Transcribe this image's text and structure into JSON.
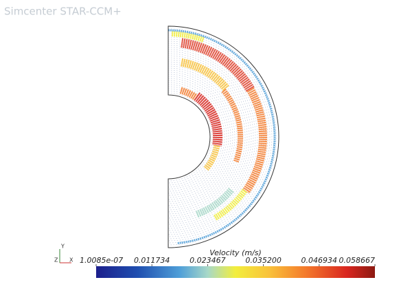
{
  "header": {
    "title": "Simcenter STAR-CCM+"
  },
  "colorbar": {
    "title": "Velocity (m/s)",
    "labels": [
      "1.0085e-07",
      "0.011734",
      "0.023467",
      "0.035200",
      "0.046934",
      "0.058667"
    ]
  },
  "triad": {
    "y": "Y",
    "z": "Z",
    "x": "X"
  }
}
